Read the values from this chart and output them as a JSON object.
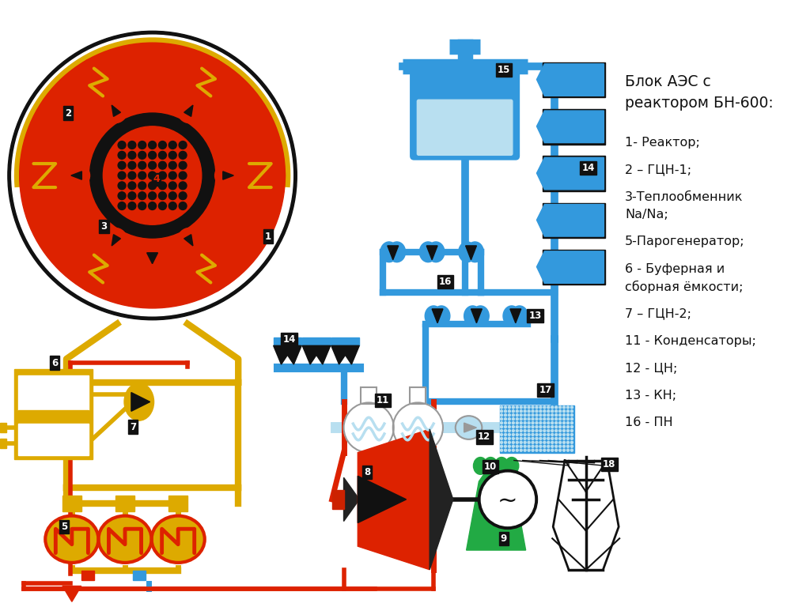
{
  "title_line1": "Блок АЭС с",
  "title_line2": "реактором БН-600:",
  "legend_lines": [
    "1- Реактор;",
    "2 – ГЦН-1;",
    "3-Теплообменник",
    "Na/Na;",
    "5-Парогенератор;",
    "6 - Буферная и",
    "сборная ёмкости;",
    "7 – ГЦН-2;",
    "11 - Конденсаторы;",
    "12 - ЦН;",
    "13 - КН;",
    "16 - ПН"
  ],
  "bg_color": "#ffffff",
  "RED": "#dd2200",
  "GOLD": "#ddaa00",
  "BLACK": "#111111",
  "BLUE": "#3399dd",
  "LIGHTBLUE": "#b8dff0",
  "GREEN": "#22aa44",
  "WHITE": "#ffffff",
  "GREY": "#999999"
}
